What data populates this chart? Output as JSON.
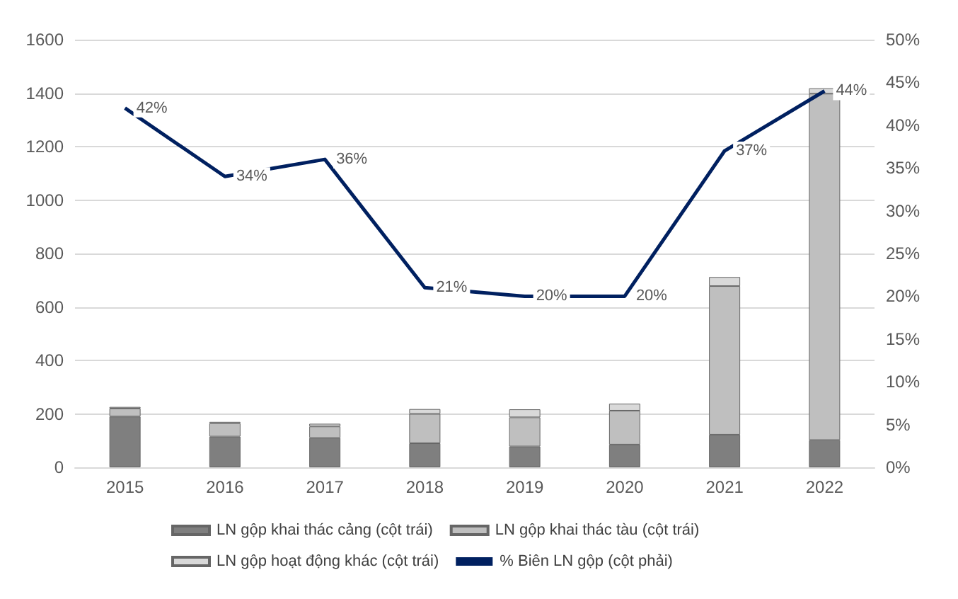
{
  "chart_data": {
    "type": "bar",
    "stacked": true,
    "categories": [
      "2015",
      "2016",
      "2017",
      "2018",
      "2019",
      "2020",
      "2021",
      "2022"
    ],
    "series": [
      {
        "name": "LN gộp khai thác cảng (cột trái)",
        "color": "#7f7f7f",
        "values": [
          190,
          115,
          110,
          90,
          78,
          85,
          122,
          102
        ]
      },
      {
        "name": "LN gộp khai thác tàu (cột trái)",
        "color": "#bfbfbf",
        "values": [
          30,
          50,
          43,
          110,
          109,
          127,
          556,
          1296
        ]
      },
      {
        "name": "LN gộp hoạt động khác (cột trái)",
        "color": "#d9d9d9",
        "values": [
          6,
          5,
          10,
          18,
          30,
          26,
          34,
          20
        ]
      },
      {
        "name": "% Biên LN gộp (cột phải)",
        "type": "line",
        "axis": "y2",
        "color": "#002060",
        "values": [
          42,
          34,
          36,
          21,
          20,
          20,
          37,
          44
        ],
        "value_labels": [
          "42%",
          "34%",
          "36%",
          "21%",
          "20%",
          "20%",
          "37%",
          "44%"
        ]
      }
    ],
    "ylim": [
      0,
      1600
    ],
    "yticks": [
      0,
      200,
      400,
      600,
      800,
      1000,
      1200,
      1400,
      1600
    ],
    "y2lim": [
      0,
      50
    ],
    "y2ticks": [
      {
        "value": 0,
        "label": "0%"
      },
      {
        "value": 5,
        "label": "5%"
      },
      {
        "value": 10,
        "label": "10%"
      },
      {
        "value": 15,
        "label": "15%"
      },
      {
        "value": 20,
        "label": "20%"
      },
      {
        "value": 25,
        "label": "25%"
      },
      {
        "value": 30,
        "label": "30%"
      },
      {
        "value": 35,
        "label": "35%"
      },
      {
        "value": 40,
        "label": "40%"
      },
      {
        "value": 45,
        "label": "45%"
      },
      {
        "value": 50,
        "label": "50%"
      }
    ],
    "grid": "y",
    "legend": "bottom"
  }
}
